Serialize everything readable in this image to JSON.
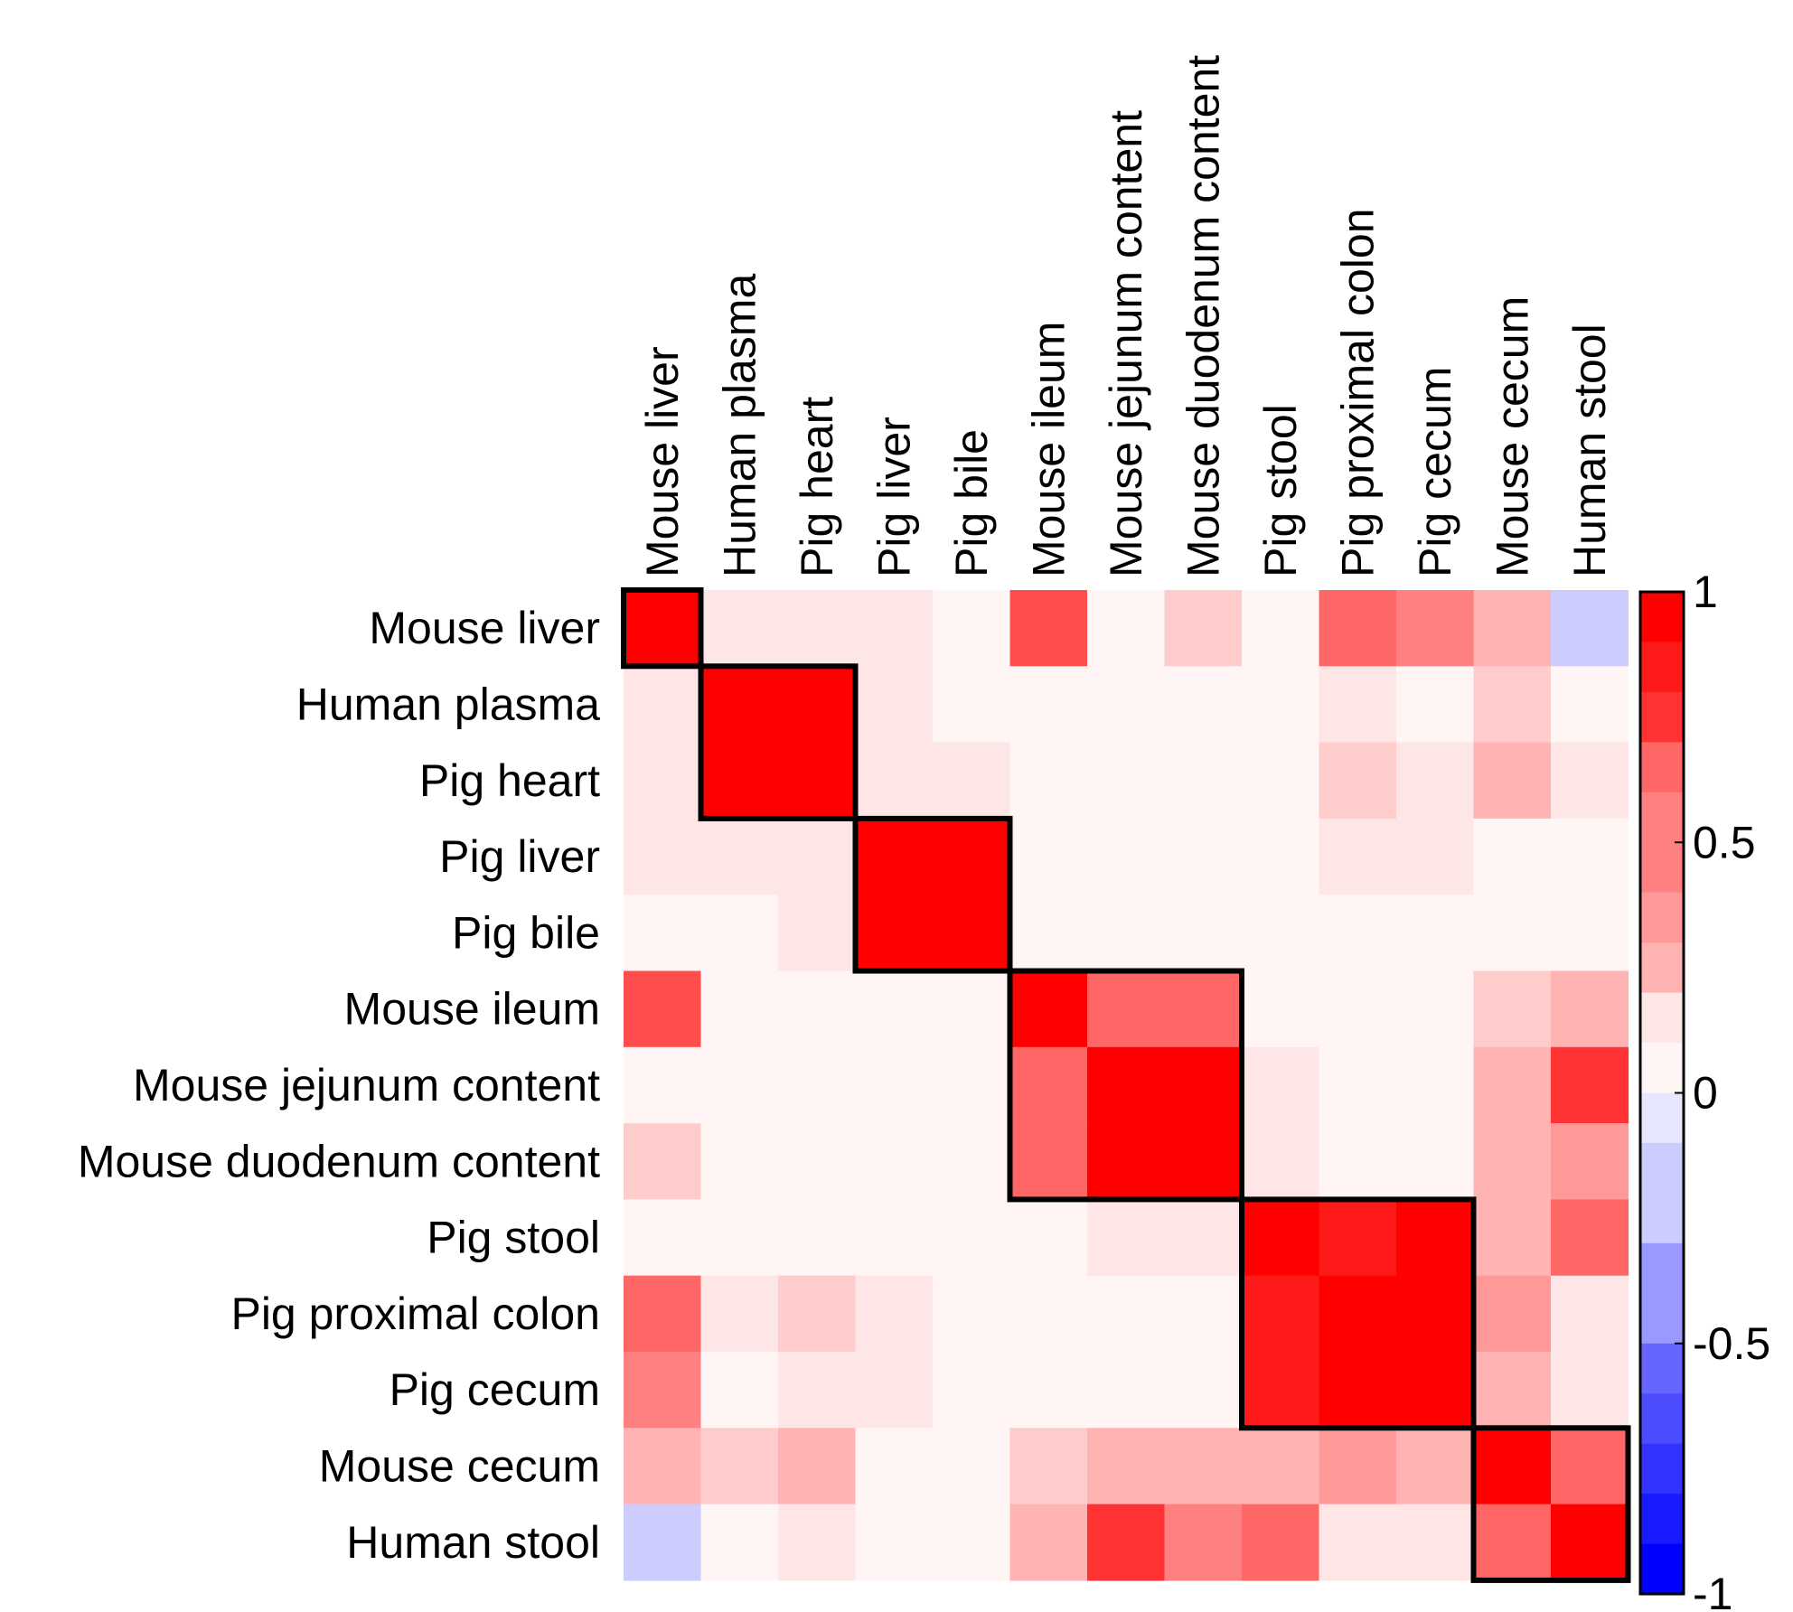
{
  "chart_data": {
    "type": "heatmap",
    "title": "",
    "labels": [
      "Mouse liver",
      "Human plasma",
      "Pig heart",
      "Pig liver",
      "Pig bile",
      "Mouse ileum",
      "Mouse jejunum content",
      "Mouse duodenum content",
      "Pig stool",
      "Pig proximal colon",
      "Pig cecum",
      "Mouse cecum",
      "Human stool"
    ],
    "matrix": [
      [
        1.0,
        0.05,
        0.05,
        0.05,
        0.0,
        0.65,
        0.0,
        0.2,
        0.0,
        0.55,
        0.45,
        0.3,
        -0.15
      ],
      [
        0.05,
        1.0,
        1.0,
        0.05,
        0.0,
        0.0,
        0.0,
        0.0,
        0.0,
        0.05,
        0.0,
        0.15,
        0.0
      ],
      [
        0.05,
        1.0,
        1.0,
        0.05,
        0.05,
        0.0,
        0.0,
        0.0,
        0.0,
        0.15,
        0.05,
        0.3,
        0.05
      ],
      [
        0.05,
        0.05,
        0.05,
        1.0,
        1.0,
        0.0,
        0.0,
        0.0,
        0.0,
        0.05,
        0.05,
        0.0,
        0.0
      ],
      [
        0.0,
        0.0,
        0.05,
        1.0,
        1.0,
        0.0,
        0.0,
        0.0,
        0.0,
        0.0,
        0.0,
        0.0,
        0.0
      ],
      [
        0.65,
        0.0,
        0.0,
        0.0,
        0.0,
        1.0,
        0.6,
        0.6,
        0.0,
        0.0,
        0.0,
        0.15,
        0.25
      ],
      [
        0.0,
        0.0,
        0.0,
        0.0,
        0.0,
        0.6,
        1.0,
        0.95,
        0.05,
        0.0,
        0.0,
        0.25,
        0.75
      ],
      [
        0.2,
        0.0,
        0.0,
        0.0,
        0.0,
        0.6,
        0.95,
        1.0,
        0.05,
        0.0,
        0.0,
        0.25,
        0.4
      ],
      [
        0.0,
        0.0,
        0.0,
        0.0,
        0.0,
        0.0,
        0.05,
        0.05,
        1.0,
        0.9,
        0.95,
        0.25,
        0.55
      ],
      [
        0.55,
        0.05,
        0.15,
        0.05,
        0.0,
        0.0,
        0.0,
        0.0,
        0.9,
        1.0,
        1.0,
        0.4,
        0.1
      ],
      [
        0.45,
        0.0,
        0.05,
        0.05,
        0.0,
        0.0,
        0.0,
        0.0,
        0.9,
        1.0,
        1.0,
        0.25,
        0.1
      ],
      [
        0.3,
        0.2,
        0.3,
        0.0,
        0.0,
        0.15,
        0.25,
        0.25,
        0.25,
        0.4,
        0.25,
        1.0,
        0.55
      ],
      [
        -0.15,
        0.0,
        0.05,
        0.0,
        0.0,
        0.25,
        0.8,
        0.45,
        0.55,
        0.1,
        0.1,
        0.55,
        1.0
      ]
    ],
    "clusters": [
      [
        0,
        0
      ],
      [
        1,
        2
      ],
      [
        3,
        4
      ],
      [
        5,
        7
      ],
      [
        8,
        10
      ],
      [
        11,
        12
      ]
    ],
    "colorbar": {
      "range": [
        -1,
        1
      ],
      "steps": 20,
      "ticks": [
        {
          "value": 1,
          "label": "1"
        },
        {
          "value": 0.5,
          "label": "0.5"
        },
        {
          "value": 0,
          "label": "0"
        },
        {
          "value": -0.5,
          "label": "-0.5"
        },
        {
          "value": -1,
          "label": "-1"
        }
      ]
    },
    "colors": {
      "positive": "#ff0000",
      "negative": "#0000ff",
      "neutral": "#ffffff",
      "cluster_outline": "#000000"
    }
  }
}
